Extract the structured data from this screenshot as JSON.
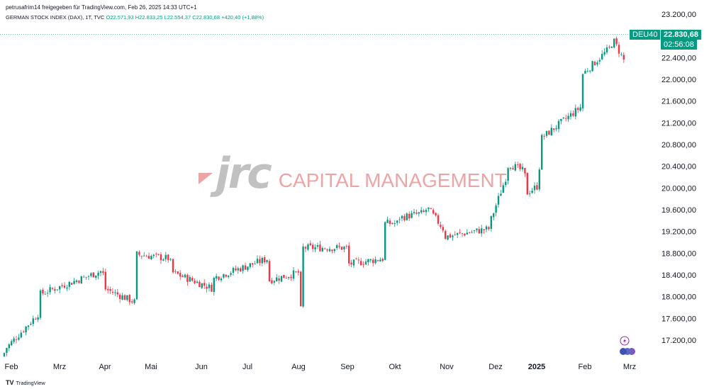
{
  "header": {
    "publisher_line": "petrusafrim14 freigegeben für TradingView.com, Feb 26, 2025 14:33 UTC+1"
  },
  "legend": {
    "symbol": "GERMAN STOCK INDEX (DAX), 1T, TVC",
    "ohlc": "O22.571,93 H22.833,25 L22.554,37 C22.830,68 +420,40 (+1,88%)"
  },
  "watermark": {
    "logo_text": "jrc",
    "name": "CAPITAL MANAGEMENT"
  },
  "price_tag": {
    "symbol": "DEU40",
    "price": "22.830,68",
    "countdown": "02:56:08"
  },
  "footer": {
    "brand": "TradingView",
    "logo_icon": "tradingview-logo-icon"
  },
  "colors": {
    "up": "#089981",
    "down": "#f23645",
    "accent": "#089981",
    "watermark_red": "#e05a5a",
    "watermark_gray": "#8f8f8f"
  },
  "chart_data": {
    "type": "candlestick",
    "title": "GERMAN STOCK INDEX (DAX), 1T, TVC",
    "y_ticks": [
      "23.200,00",
      "22.800,00",
      "22.400,00",
      "22.000,00",
      "21.600,00",
      "21.200,00",
      "20.800,00",
      "20.400,00",
      "20.000,00",
      "19.600,00",
      "19.200,00",
      "18.800,00",
      "18.400,00",
      "18.000,00",
      "17.600,00",
      "17.200,00"
    ],
    "x_ticks": [
      "Feb",
      "Mrz",
      "Apr",
      "Mai",
      "Jun",
      "Jul",
      "Aug",
      "Sep",
      "Okt",
      "Nov",
      "Dez",
      "2025",
      "Feb",
      "Mrz"
    ],
    "ylim": [
      17000,
      23300
    ],
    "grid": false,
    "last_price": 22830.68,
    "series": [
      {
        "segments": [
          [
            "Feb",
            16900,
            17030
          ],
          [
            "Mrz",
            17700,
            18050
          ],
          [
            "Apr",
            18480,
            18150
          ],
          [
            "Mai",
            17900,
            18780
          ],
          [
            "Jun",
            18700,
            18450
          ],
          [
            "Jul",
            18150,
            18350
          ],
          [
            "Jul-mid",
            18700,
            18300
          ],
          [
            "Aug-start",
            18450,
            17300
          ],
          [
            "Aug-end",
            17500,
            18900
          ],
          [
            "Sep",
            18900,
            18600
          ],
          [
            "Sep-end",
            18700,
            19350
          ],
          [
            "Okt",
            19350,
            19450
          ],
          [
            "Okt-mid",
            19550,
            19650
          ],
          [
            "Nov",
            19250,
            19100
          ],
          [
            "Nov-end",
            19250,
            19400
          ],
          [
            "Dez",
            20250,
            20450
          ],
          [
            "Dez-mid",
            20300,
            19900
          ],
          [
            "2025",
            20050,
            20900
          ],
          [
            "Feb-start",
            21500,
            22100
          ],
          [
            "Feb-mid",
            22600,
            22750
          ],
          [
            "Feb-late",
            22350,
            22830
          ]
        ]
      }
    ]
  }
}
